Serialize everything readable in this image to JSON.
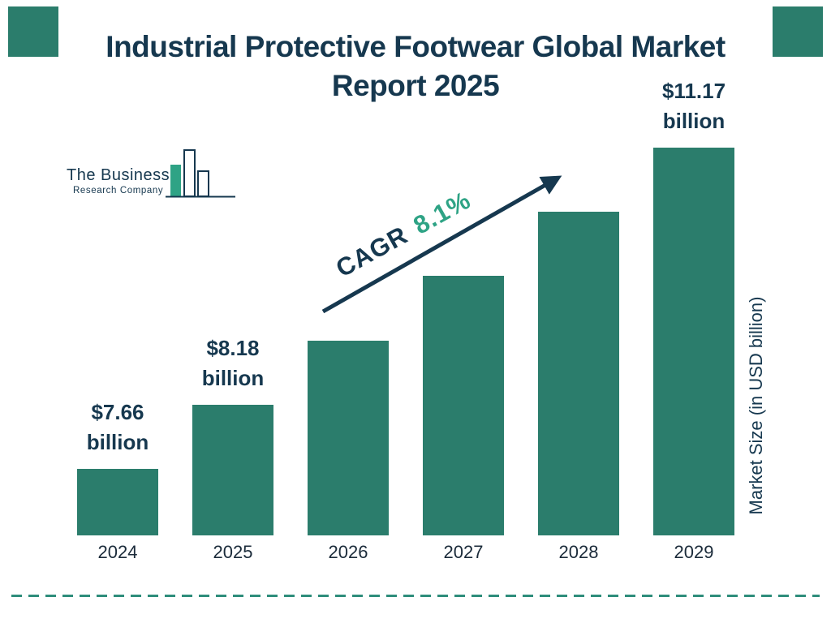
{
  "title_lines": [
    "Industrial Protective Footwear Global Market",
    "Report 2025"
  ],
  "logo": {
    "name_line1": "The Business",
    "name_line2": "Research Company"
  },
  "cagr": {
    "label": "CAGR",
    "value": "8.1%"
  },
  "ylabel": "Market Size (in USD billion)",
  "chart_data": {
    "type": "bar",
    "title": "Industrial Protective Footwear Global Market Report 2025",
    "categories": [
      "2024",
      "2025",
      "2026",
      "2027",
      "2028",
      "2029"
    ],
    "values": [
      7.66,
      8.18,
      8.84,
      9.56,
      10.33,
      11.17
    ],
    "unit": "USD billion",
    "value_labels": [
      "$7.66 billion",
      "$8.18 billion",
      "",
      "",
      "",
      "$11.17 billion"
    ],
    "xlabel": "",
    "ylabel": "Market Size (in USD billion)",
    "cagr_percent": 8.1,
    "legend": false,
    "gridlines": false,
    "axis_lines": false,
    "colors": {
      "bar": "#2B7D6C",
      "navy": "#16384F",
      "green": "#2EA385"
    }
  }
}
